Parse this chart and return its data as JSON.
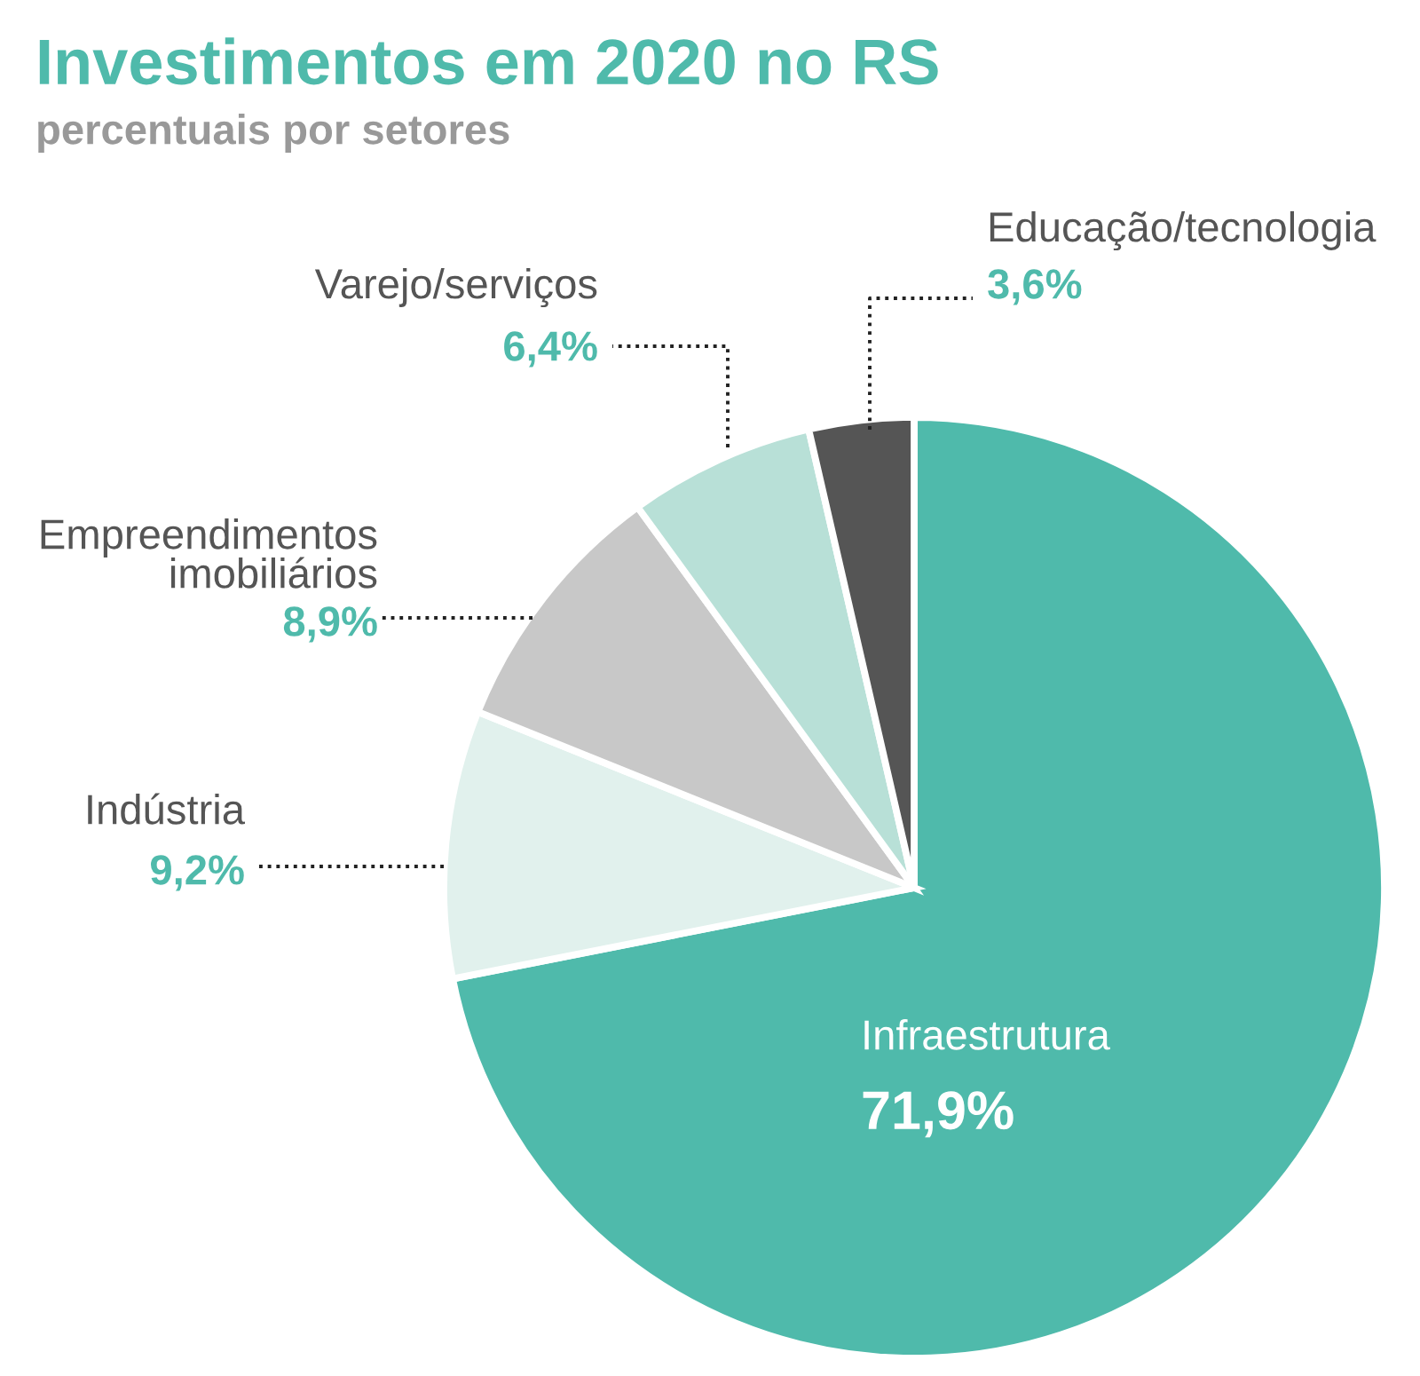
{
  "chart_data": {
    "type": "pie",
    "title": "Investimentos em 2020 no RS",
    "subtitle": "percentuais por setores",
    "categories": [
      "Infraestrutura",
      "Indústria",
      "Empreendimentos\nimobiliários",
      "Varejo/serviços",
      "Educação/tecnologia"
    ],
    "values": [
      71.9,
      9.2,
      8.9,
      6.4,
      3.6
    ],
    "colors": [
      "#4fbaab",
      "#e1f1ed",
      "#c8c8c8",
      "#b8e0d7",
      "#555555"
    ],
    "value_labels": [
      "71,9%",
      "9,2%",
      "8,9%",
      "6,4%",
      "3,6%"
    ]
  }
}
